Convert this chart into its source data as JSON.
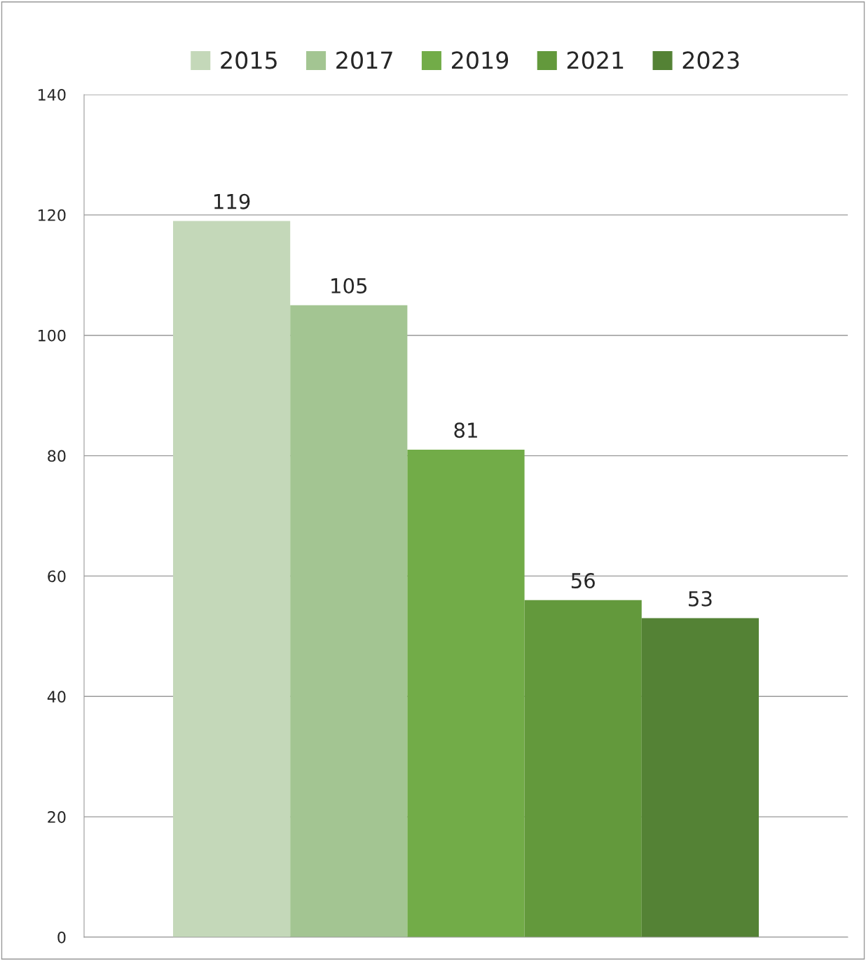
{
  "chart_data": {
    "type": "bar",
    "categories": [
      null
    ],
    "series": [
      {
        "name": "2015",
        "color": "#c4d8b9",
        "values": [
          119
        ]
      },
      {
        "name": "2017",
        "color": "#a3c592",
        "values": [
          105
        ]
      },
      {
        "name": "2019",
        "color": "#72ac48",
        "values": [
          81
        ]
      },
      {
        "name": "2021",
        "color": "#63993c",
        "values": [
          56
        ]
      },
      {
        "name": "2023",
        "color": "#548235",
        "values": [
          53
        ]
      }
    ],
    "ylim": [
      0,
      140
    ],
    "yticks": [
      0,
      20,
      40,
      60,
      80,
      100,
      120,
      140
    ],
    "grid": "y",
    "legend": "top",
    "data_labels": true
  }
}
